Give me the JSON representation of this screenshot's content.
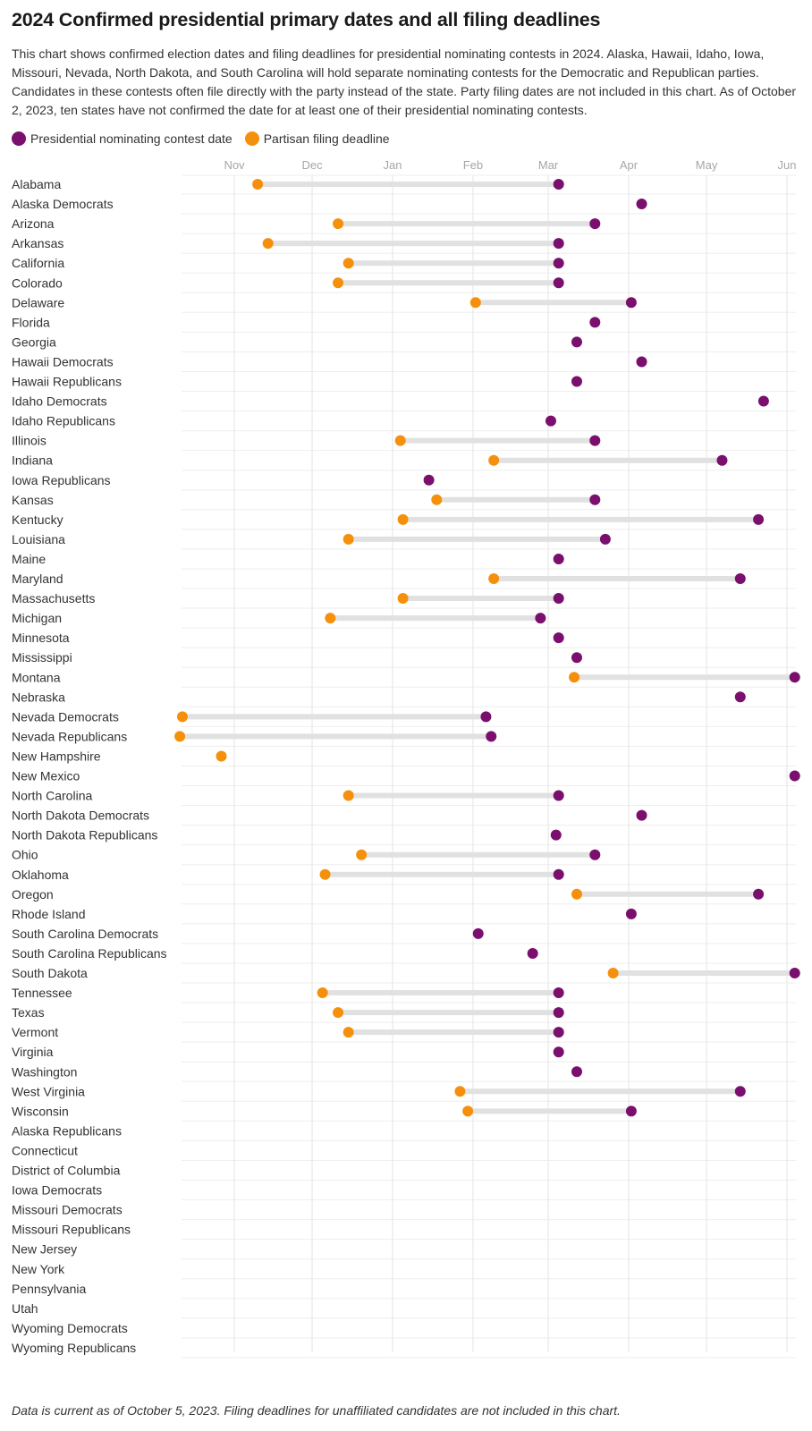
{
  "title": "2024 Confirmed presidential primary dates and all filing deadlines",
  "subtitle": "This chart shows confirmed election dates and filing deadlines for presidential nominating contests in 2024. Alaska, Hawaii, Idaho, Iowa, Missouri, Nevada, North Dakota, and South Carolina will hold separate nominating contests for the Democratic and Republican parties. Candidates in these contests often file directly with the party instead of the state. Party filing dates are not included in this chart. As of October 2, 2023, ten states have not confirmed the date for at least one of their presidential nominating contests.",
  "legend": {
    "contest_label": "Presidential nominating contest date",
    "deadline_label": "Partisan filing deadline"
  },
  "colors": {
    "contest": "#7a0f6e",
    "deadline": "#f5900c",
    "connector": "#e1e1e1",
    "grid": "#e8e8e8",
    "axis_text": "#a6a6a6"
  },
  "footnote": "Data is current as of October 5, 2023. Filing deadlines for unaffiliated candidates are not included in this chart.",
  "chart_data": {
    "type": "dumbbell",
    "x_axis": {
      "type": "date",
      "range": [
        "2023-10-11",
        "2024-06-04"
      ],
      "ticks": [
        {
          "date": "2023-11-01",
          "label": "Nov"
        },
        {
          "date": "2023-12-01",
          "label": "Dec"
        },
        {
          "date": "2024-01-01",
          "label": "Jan"
        },
        {
          "date": "2024-02-01",
          "label": "Feb"
        },
        {
          "date": "2024-03-01",
          "label": "Mar"
        },
        {
          "date": "2024-04-01",
          "label": "Apr"
        },
        {
          "date": "2024-05-01",
          "label": "May"
        },
        {
          "date": "2024-06-01",
          "label": "Jun"
        }
      ],
      "grid": true
    },
    "series": [
      {
        "name": "Presidential nominating contest date",
        "key": "contest"
      },
      {
        "name": "Partisan filing deadline",
        "key": "deadline"
      }
    ],
    "rows": [
      {
        "label": "Alabama",
        "deadline": "2023-11-10",
        "contest": "2024-03-05"
      },
      {
        "label": "Alaska Democrats",
        "deadline": null,
        "contest": "2024-04-06"
      },
      {
        "label": "Arizona",
        "deadline": "2023-12-11",
        "contest": "2024-03-19"
      },
      {
        "label": "Arkansas",
        "deadline": "2023-11-14",
        "contest": "2024-03-05"
      },
      {
        "label": "California",
        "deadline": "2023-12-15",
        "contest": "2024-03-05"
      },
      {
        "label": "Colorado",
        "deadline": "2023-12-11",
        "contest": "2024-03-05"
      },
      {
        "label": "Delaware",
        "deadline": "2024-02-02",
        "contest": "2024-04-02"
      },
      {
        "label": "Florida",
        "deadline": null,
        "contest": "2024-03-19"
      },
      {
        "label": "Georgia",
        "deadline": null,
        "contest": "2024-03-12"
      },
      {
        "label": "Hawaii Democrats",
        "deadline": null,
        "contest": "2024-04-06"
      },
      {
        "label": "Hawaii Republicans",
        "deadline": null,
        "contest": "2024-03-12"
      },
      {
        "label": "Idaho Democrats",
        "deadline": null,
        "contest": "2024-05-23"
      },
      {
        "label": "Idaho Republicans",
        "deadline": null,
        "contest": "2024-03-02"
      },
      {
        "label": "Illinois",
        "deadline": "2024-01-04",
        "contest": "2024-03-19"
      },
      {
        "label": "Indiana",
        "deadline": "2024-02-09",
        "contest": "2024-05-07"
      },
      {
        "label": "Iowa Republicans",
        "deadline": null,
        "contest": "2024-01-15"
      },
      {
        "label": "Kansas",
        "deadline": "2024-01-18",
        "contest": "2024-03-19"
      },
      {
        "label": "Kentucky",
        "deadline": "2024-01-05",
        "contest": "2024-05-21"
      },
      {
        "label": "Louisiana",
        "deadline": "2023-12-15",
        "contest": "2024-03-23"
      },
      {
        "label": "Maine",
        "deadline": null,
        "contest": "2024-03-05"
      },
      {
        "label": "Maryland",
        "deadline": "2024-02-09",
        "contest": "2024-05-14"
      },
      {
        "label": "Massachusetts",
        "deadline": "2024-01-05",
        "contest": "2024-03-05"
      },
      {
        "label": "Michigan",
        "deadline": "2023-12-08",
        "contest": "2024-02-27"
      },
      {
        "label": "Minnesota",
        "deadline": null,
        "contest": "2024-03-05"
      },
      {
        "label": "Mississippi",
        "deadline": null,
        "contest": "2024-03-12"
      },
      {
        "label": "Montana",
        "deadline": "2024-03-11",
        "contest": "2024-06-04"
      },
      {
        "label": "Nebraska",
        "deadline": null,
        "contest": "2024-05-14"
      },
      {
        "label": "Nevada Democrats",
        "deadline": "2023-10-12",
        "contest": "2024-02-06"
      },
      {
        "label": "Nevada Republicans",
        "deadline": "2023-10-11",
        "contest": "2024-02-08"
      },
      {
        "label": "New Hampshire",
        "deadline": "2023-10-27",
        "contest": null
      },
      {
        "label": "New Mexico",
        "deadline": null,
        "contest": "2024-06-04"
      },
      {
        "label": "North Carolina",
        "deadline": "2023-12-15",
        "contest": "2024-03-05"
      },
      {
        "label": "North Dakota Democrats",
        "deadline": null,
        "contest": "2024-04-06"
      },
      {
        "label": "North Dakota Republicans",
        "deadline": null,
        "contest": "2024-03-04"
      },
      {
        "label": "Ohio",
        "deadline": "2023-12-20",
        "contest": "2024-03-19"
      },
      {
        "label": "Oklahoma",
        "deadline": "2023-12-06",
        "contest": "2024-03-05"
      },
      {
        "label": "Oregon",
        "deadline": "2024-03-12",
        "contest": "2024-05-21"
      },
      {
        "label": "Rhode Island",
        "deadline": null,
        "contest": "2024-04-02"
      },
      {
        "label": "South Carolina Democrats",
        "deadline": null,
        "contest": "2024-02-03"
      },
      {
        "label": "South Carolina Republicans",
        "deadline": null,
        "contest": "2024-02-24"
      },
      {
        "label": "South Dakota",
        "deadline": "2024-03-26",
        "contest": "2024-06-04"
      },
      {
        "label": "Tennessee",
        "deadline": "2023-12-05",
        "contest": "2024-03-05"
      },
      {
        "label": "Texas",
        "deadline": "2023-12-11",
        "contest": "2024-03-05"
      },
      {
        "label": "Vermont",
        "deadline": "2023-12-15",
        "contest": "2024-03-05"
      },
      {
        "label": "Virginia",
        "deadline": null,
        "contest": "2024-03-05"
      },
      {
        "label": "Washington",
        "deadline": null,
        "contest": "2024-03-12"
      },
      {
        "label": "West Virginia",
        "deadline": "2024-01-27",
        "contest": "2024-05-14"
      },
      {
        "label": "Wisconsin",
        "deadline": "2024-01-30",
        "contest": "2024-04-02"
      },
      {
        "label": "Alaska Republicans",
        "deadline": null,
        "contest": null
      },
      {
        "label": "Connecticut",
        "deadline": null,
        "contest": null
      },
      {
        "label": "District of Columbia",
        "deadline": null,
        "contest": null
      },
      {
        "label": "Iowa Democrats",
        "deadline": null,
        "contest": null
      },
      {
        "label": "Missouri Democrats",
        "deadline": null,
        "contest": null
      },
      {
        "label": "Missouri Republicans",
        "deadline": null,
        "contest": null
      },
      {
        "label": "New Jersey",
        "deadline": null,
        "contest": null
      },
      {
        "label": "New York",
        "deadline": null,
        "contest": null
      },
      {
        "label": "Pennsylvania",
        "deadline": null,
        "contest": null
      },
      {
        "label": "Utah",
        "deadline": null,
        "contest": null
      },
      {
        "label": "Wyoming Democrats",
        "deadline": null,
        "contest": null
      },
      {
        "label": "Wyoming Republicans",
        "deadline": null,
        "contest": null
      }
    ]
  }
}
